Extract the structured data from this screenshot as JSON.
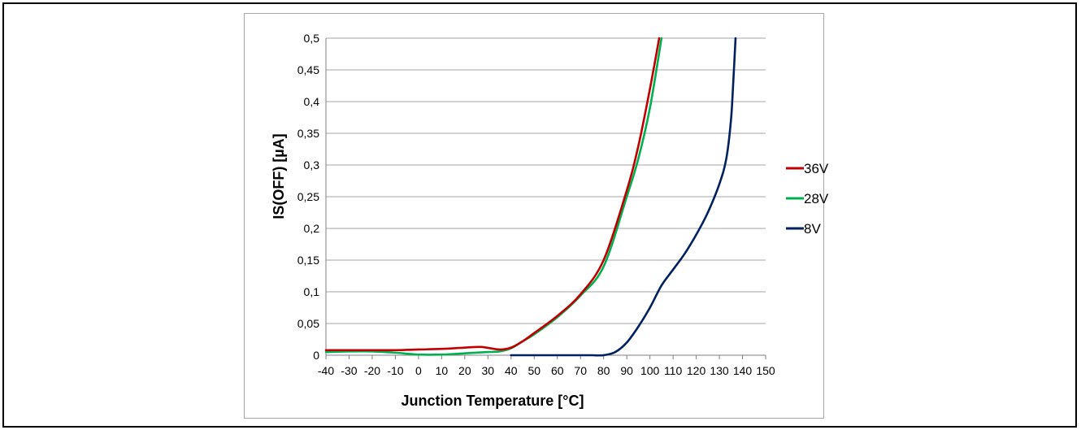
{
  "chart_data": {
    "type": "line",
    "title": "",
    "xlabel": "Junction Temperature [°C]",
    "ylabel": "IS(OFF) [µA]",
    "xlim": [
      -40,
      150
    ],
    "ylim": [
      0,
      0.5
    ],
    "x_ticks": [
      -40,
      -30,
      -20,
      -10,
      0,
      10,
      20,
      30,
      40,
      50,
      60,
      70,
      80,
      90,
      100,
      110,
      120,
      130,
      140,
      150
    ],
    "x_tick_labels": [
      "-40",
      "-30",
      "-20",
      "-10",
      "0",
      "10",
      "20",
      "30",
      "40",
      "50",
      "60",
      "70",
      "80",
      "90",
      "100",
      "110",
      "120",
      "130",
      "140",
      "150"
    ],
    "y_ticks": [
      0,
      0.05,
      0.1,
      0.15,
      0.2,
      0.25,
      0.3,
      0.35,
      0.4,
      0.45,
      0.5
    ],
    "y_tick_labels": [
      "0",
      "0,05",
      "0,1",
      "0,15",
      "0,2",
      "0,25",
      "0,3",
      "0,35",
      "0,4",
      "0,45",
      "0,5"
    ],
    "grid": "horizontal",
    "legend_position": "right",
    "series": [
      {
        "name": "36V",
        "color": "#c00000",
        "x": [
          -40,
          -30,
          -20,
          -10,
          0,
          10,
          20,
          27,
          35,
          40,
          45,
          50,
          60,
          70,
          80,
          90,
          95,
          100,
          104
        ],
        "y": [
          0.008,
          0.008,
          0.008,
          0.008,
          0.009,
          0.01,
          0.012,
          0.013,
          0.009,
          0.012,
          0.022,
          0.035,
          0.062,
          0.096,
          0.15,
          0.26,
          0.33,
          0.42,
          0.5
        ]
      },
      {
        "name": "28V",
        "color": "#00b050",
        "x": [
          -40,
          -30,
          -20,
          -10,
          0,
          10,
          20,
          30,
          35,
          40,
          45,
          50,
          60,
          70,
          80,
          90,
          95,
          100,
          105
        ],
        "y": [
          0.005,
          0.006,
          0.006,
          0.004,
          0.001,
          0.001,
          0.003,
          0.005,
          0.006,
          0.011,
          0.022,
          0.033,
          0.06,
          0.094,
          0.14,
          0.25,
          0.31,
          0.39,
          0.5
        ]
      },
      {
        "name": "8V",
        "color": "#002060",
        "x": [
          40,
          50,
          60,
          70,
          75,
          80,
          85,
          90,
          95,
          100,
          105,
          110,
          115,
          120,
          125,
          130,
          133,
          135,
          136,
          137
        ],
        "y": [
          0,
          0,
          0,
          0,
          0,
          0,
          0.005,
          0.02,
          0.045,
          0.075,
          0.11,
          0.135,
          0.16,
          0.19,
          0.225,
          0.27,
          0.31,
          0.37,
          0.43,
          0.5
        ]
      }
    ]
  }
}
